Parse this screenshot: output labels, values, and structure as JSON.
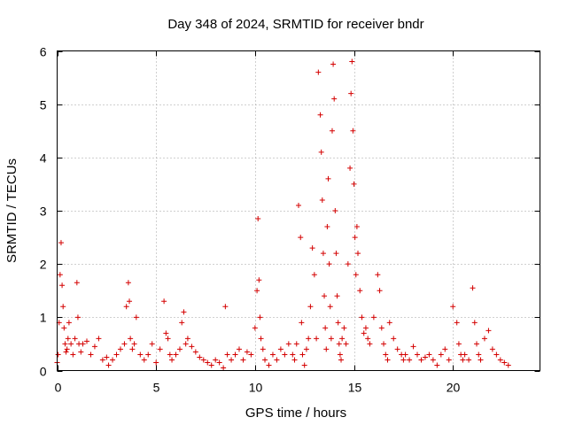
{
  "chart_data": {
    "type": "scatter",
    "title": "Day 348 of 2024, SRMTID for receiver bndr",
    "xlabel": "GPS time / hours",
    "ylabel": "SRMTID / TECUs",
    "xlim": [
      0,
      24.4
    ],
    "ylim": [
      0,
      6
    ],
    "xticks": [
      0,
      5,
      10,
      15,
      20
    ],
    "yticks": [
      0,
      1,
      2,
      3,
      4,
      5,
      6
    ],
    "grid": true,
    "marker": "+",
    "color": "#d40000",
    "series": [
      {
        "name": "SRMTID",
        "x": [
          0.0,
          0.05,
          0.1,
          0.15,
          0.2,
          0.25,
          0.3,
          0.35,
          0.4,
          0.45,
          0.5,
          0.55,
          0.6,
          0.7,
          0.8,
          0.9,
          1.0,
          1.05,
          1.1,
          1.2,
          1.3,
          1.5,
          1.7,
          1.9,
          2.1,
          2.3,
          2.5,
          2.6,
          2.8,
          3.0,
          3.2,
          3.4,
          3.5,
          3.6,
          3.65,
          3.7,
          3.8,
          3.9,
          4.0,
          4.2,
          4.4,
          4.6,
          4.8,
          5.0,
          5.2,
          5.4,
          5.5,
          5.6,
          5.7,
          5.8,
          6.0,
          6.2,
          6.3,
          6.4,
          6.5,
          6.6,
          6.8,
          7.0,
          7.2,
          7.4,
          7.6,
          7.8,
          8.0,
          8.2,
          8.4,
          8.5,
          8.6,
          8.8,
          9.0,
          9.2,
          9.4,
          9.6,
          9.8,
          10.0,
          10.1,
          10.15,
          10.2,
          10.25,
          10.3,
          10.4,
          10.5,
          10.7,
          10.9,
          11.1,
          11.3,
          11.5,
          11.7,
          11.9,
          12.0,
          12.1,
          12.2,
          12.3,
          12.35,
          12.4,
          12.5,
          12.6,
          12.7,
          12.8,
          12.9,
          13.0,
          13.1,
          13.2,
          13.3,
          13.35,
          13.4,
          13.45,
          13.5,
          13.55,
          13.6,
          13.65,
          13.7,
          13.75,
          13.8,
          13.85,
          13.9,
          13.95,
          14.0,
          14.05,
          14.1,
          14.15,
          14.2,
          14.25,
          14.3,
          14.35,
          14.4,
          14.5,
          14.6,
          14.7,
          14.8,
          14.85,
          14.9,
          14.95,
          15.0,
          15.05,
          15.1,
          15.15,
          15.2,
          15.3,
          15.4,
          15.5,
          15.6,
          15.7,
          15.8,
          16.0,
          16.2,
          16.3,
          16.4,
          16.5,
          16.6,
          16.7,
          16.8,
          17.0,
          17.2,
          17.4,
          17.5,
          17.6,
          17.8,
          18.0,
          18.2,
          18.4,
          18.6,
          18.8,
          19.0,
          19.2,
          19.4,
          19.6,
          19.8,
          20.0,
          20.2,
          20.3,
          20.4,
          20.5,
          20.6,
          20.8,
          21.0,
          21.1,
          21.2,
          21.3,
          21.4,
          21.6,
          21.8,
          22.0,
          22.2,
          22.4,
          22.6,
          22.8
        ],
        "y": [
          0.15,
          0.3,
          0.9,
          1.8,
          2.4,
          1.6,
          1.2,
          0.8,
          0.5,
          0.35,
          0.4,
          0.6,
          0.9,
          0.5,
          0.3,
          0.6,
          1.65,
          1.0,
          0.5,
          0.35,
          0.5,
          0.55,
          0.3,
          0.45,
          0.6,
          0.2,
          0.25,
          0.1,
          0.2,
          0.3,
          0.4,
          0.5,
          1.2,
          1.65,
          1.3,
          0.6,
          0.4,
          0.5,
          1.0,
          0.3,
          0.2,
          0.3,
          0.5,
          0.15,
          0.4,
          1.3,
          0.7,
          0.6,
          0.3,
          0.2,
          0.3,
          0.4,
          0.9,
          1.1,
          0.5,
          0.6,
          0.45,
          0.35,
          0.25,
          0.2,
          0.15,
          0.1,
          0.2,
          0.15,
          0.05,
          1.2,
          0.3,
          0.2,
          0.3,
          0.4,
          0.2,
          0.35,
          0.3,
          0.8,
          1.5,
          2.85,
          1.7,
          1.0,
          0.6,
          0.4,
          0.2,
          0.1,
          0.3,
          0.2,
          0.4,
          0.3,
          0.5,
          0.3,
          0.2,
          0.5,
          3.1,
          2.5,
          0.9,
          0.3,
          0.1,
          0.4,
          0.6,
          1.2,
          2.3,
          1.8,
          0.6,
          5.6,
          4.8,
          4.1,
          3.2,
          2.2,
          1.4,
          0.8,
          0.4,
          2.7,
          3.6,
          2.0,
          1.2,
          0.6,
          4.5,
          5.75,
          5.1,
          3.0,
          2.2,
          1.4,
          0.9,
          0.5,
          0.3,
          0.2,
          0.6,
          0.8,
          0.5,
          2.0,
          3.8,
          5.2,
          5.8,
          4.5,
          3.5,
          2.5,
          1.8,
          2.7,
          2.2,
          1.5,
          1.0,
          0.7,
          0.8,
          0.6,
          0.5,
          1.0,
          1.8,
          1.5,
          0.8,
          0.5,
          0.3,
          0.2,
          0.9,
          0.6,
          0.4,
          0.3,
          0.2,
          0.3,
          0.2,
          0.45,
          0.3,
          0.2,
          0.25,
          0.3,
          0.2,
          0.1,
          0.3,
          0.4,
          0.2,
          1.2,
          0.9,
          0.5,
          0.3,
          0.2,
          0.3,
          0.2,
          1.55,
          0.9,
          0.5,
          0.3,
          0.2,
          0.6,
          0.75,
          0.4,
          0.3,
          0.2,
          0.15,
          0.1
        ]
      }
    ]
  }
}
